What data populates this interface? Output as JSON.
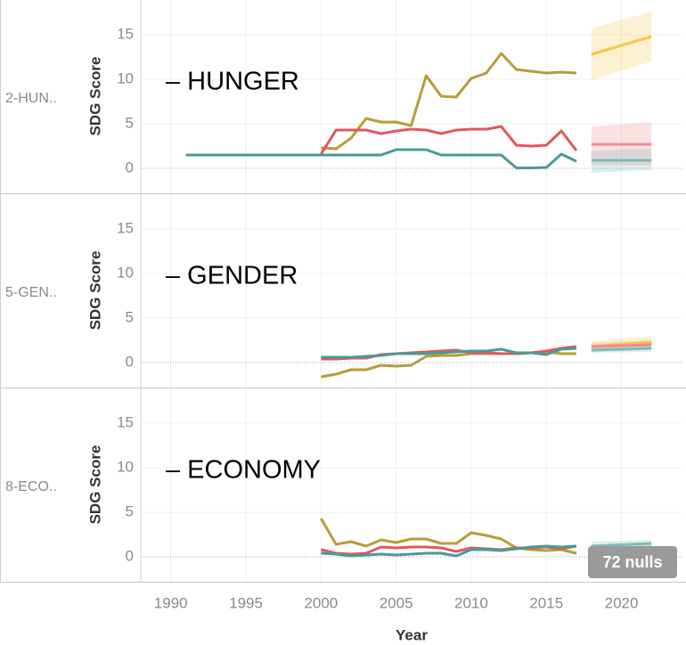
{
  "chart_data": [
    {
      "type": "line",
      "row_label": "2-HUN..",
      "annotation": "– HUNGER",
      "ylabel": "SDG Score",
      "xlim": [
        1988,
        2024
      ],
      "ylim": [
        -2.9,
        18.9
      ],
      "yticks": [
        0,
        5,
        10,
        15
      ],
      "series": [
        {
          "color": "#b79d35",
          "x": [
            2000,
            2001,
            2002,
            2003,
            2004,
            2005,
            2006,
            2007,
            2008,
            2009,
            2010,
            2011,
            2012,
            2013,
            2014,
            2015,
            2016,
            2017
          ],
          "values": [
            2.3,
            2.2,
            3.4,
            5.6,
            5.2,
            5.2,
            4.8,
            10.4,
            8.1,
            8.0,
            10.1,
            10.7,
            12.9,
            11.1,
            10.9,
            10.7,
            10.8,
            10.7
          ]
        },
        {
          "color": "#e0585e",
          "x": [
            2000,
            2001,
            2002,
            2003,
            2004,
            2005,
            2006,
            2007,
            2008,
            2009,
            2010,
            2011,
            2012,
            2013,
            2014,
            2015,
            2016,
            2017
          ],
          "values": [
            1.6,
            4.3,
            4.3,
            4.3,
            3.9,
            4.2,
            4.4,
            4.3,
            3.9,
            4.3,
            4.4,
            4.4,
            4.7,
            2.6,
            2.5,
            2.6,
            4.2,
            2.0
          ]
        },
        {
          "color": "#4a9a98",
          "x": [
            1991,
            1992,
            1993,
            1994,
            1995,
            1996,
            1997,
            1998,
            1999,
            2000,
            2001,
            2002,
            2003,
            2004,
            2005,
            2006,
            2007,
            2008,
            2009,
            2010,
            2011,
            2012,
            2013,
            2014,
            2015,
            2016,
            2017
          ],
          "values": [
            1.5,
            1.5,
            1.5,
            1.5,
            1.5,
            1.5,
            1.5,
            1.5,
            1.5,
            1.5,
            1.5,
            1.5,
            1.5,
            1.5,
            2.1,
            2.1,
            2.1,
            1.5,
            1.5,
            1.5,
            1.5,
            1.5,
            0.05,
            0.05,
            0.1,
            1.6,
            0.8
          ]
        }
      ],
      "forecasts": [
        {
          "color": "#f2c94c",
          "x": [
            2018,
            2022
          ],
          "values": [
            12.8,
            14.8
          ],
          "lower": [
            9.9,
            12.0
          ],
          "upper": [
            15.7,
            17.6
          ]
        },
        {
          "color": "#f4898c",
          "x": [
            2018,
            2022
          ],
          "values": [
            2.7,
            2.7
          ],
          "lower": [
            0.4,
            0.3
          ],
          "upper": [
            4.7,
            5.2
          ]
        },
        {
          "color": "#7cbcb9",
          "x": [
            2018,
            2022
          ],
          "values": [
            0.9,
            0.9
          ],
          "lower": [
            -0.5,
            -0.2
          ],
          "upper": [
            2.0,
            2.2
          ]
        }
      ]
    },
    {
      "type": "line",
      "row_label": "5-GEN..",
      "annotation": "– GENDER",
      "ylabel": "SDG Score",
      "xlim": [
        1988,
        2024
      ],
      "ylim": [
        -2.9,
        18.9
      ],
      "yticks": [
        0,
        5,
        10,
        15
      ],
      "series": [
        {
          "color": "#b79d35",
          "x": [
            2000,
            2001,
            2002,
            2003,
            2004,
            2005,
            2006,
            2007,
            2008,
            2009,
            2010,
            2011,
            2012,
            2013,
            2014,
            2015,
            2016,
            2017
          ],
          "values": [
            -1.6,
            -1.3,
            -0.8,
            -0.8,
            -0.3,
            -0.4,
            -0.3,
            0.7,
            0.8,
            0.8,
            1.0,
            1.0,
            1.0,
            1.0,
            1.1,
            1.2,
            1.0,
            1.0
          ]
        },
        {
          "color": "#e0585e",
          "x": [
            2000,
            2001,
            2002,
            2003,
            2004,
            2005,
            2006,
            2007,
            2008,
            2009,
            2010,
            2011,
            2012,
            2013,
            2014,
            2015,
            2016,
            2017
          ],
          "values": [
            0.4,
            0.4,
            0.5,
            0.5,
            0.9,
            1.0,
            1.1,
            1.2,
            1.3,
            1.4,
            1.1,
            1.1,
            1.0,
            1.0,
            1.1,
            1.3,
            1.6,
            1.8
          ]
        },
        {
          "color": "#4a9a98",
          "x": [
            2000,
            2001,
            2002,
            2003,
            2004,
            2005,
            2006,
            2007,
            2008,
            2009,
            2010,
            2011,
            2012,
            2013,
            2014,
            2015,
            2016,
            2017
          ],
          "values": [
            0.6,
            0.6,
            0.6,
            0.7,
            0.8,
            1.0,
            1.0,
            1.0,
            1.1,
            1.2,
            1.3,
            1.3,
            1.5,
            1.1,
            1.1,
            0.9,
            1.5,
            1.6
          ]
        }
      ],
      "forecasts": [
        {
          "color": "#f2c94c",
          "x": [
            2018,
            2022
          ],
          "values": [
            1.8,
            2.3
          ],
          "lower": [
            1.2,
            1.5
          ],
          "upper": [
            2.4,
            2.9
          ]
        },
        {
          "color": "#f4898c",
          "x": [
            2018,
            2022
          ],
          "values": [
            1.8,
            2.0
          ],
          "lower": [
            1.4,
            1.5
          ],
          "upper": [
            2.2,
            2.5
          ]
        },
        {
          "color": "#7cbcb9",
          "x": [
            2018,
            2022
          ],
          "values": [
            1.4,
            1.6
          ],
          "lower": [
            1.1,
            1.2
          ],
          "upper": [
            1.7,
            2.0
          ]
        }
      ]
    },
    {
      "type": "line",
      "row_label": "8-ECO..",
      "annotation": "– ECONOMY",
      "ylabel": "SDG Score",
      "xlim": [
        1988,
        2024
      ],
      "ylim": [
        -2.9,
        18.9
      ],
      "yticks": [
        0,
        5,
        10,
        15
      ],
      "xticks": [
        1990,
        1995,
        2000,
        2005,
        2010,
        2015,
        2020
      ],
      "xlabel": "Year",
      "note": "72 nulls",
      "series": [
        {
          "color": "#b79d35",
          "x": [
            2000,
            2001,
            2002,
            2003,
            2004,
            2005,
            2006,
            2007,
            2008,
            2009,
            2010,
            2011,
            2012,
            2013,
            2014,
            2015,
            2016,
            2017
          ],
          "values": [
            4.3,
            1.4,
            1.7,
            1.2,
            1.9,
            1.6,
            2.0,
            2.0,
            1.5,
            1.5,
            2.7,
            2.4,
            2.0,
            1.0,
            0.8,
            0.7,
            0.8,
            0.4
          ]
        },
        {
          "color": "#e0585e",
          "x": [
            2000,
            2001,
            2002,
            2003,
            2004,
            2005,
            2006,
            2007,
            2008,
            2009,
            2010,
            2011,
            2012,
            2013,
            2014,
            2015,
            2016,
            2017
          ],
          "values": [
            0.8,
            0.4,
            0.3,
            0.4,
            1.1,
            1.0,
            1.1,
            1.1,
            1.0,
            0.6,
            1.0,
            0.9,
            0.8,
            1.0,
            1.0,
            1.1,
            0.9,
            1.2
          ]
        },
        {
          "color": "#4a9a98",
          "x": [
            2000,
            2001,
            2002,
            2003,
            2004,
            2005,
            2006,
            2007,
            2008,
            2009,
            2010,
            2011,
            2012,
            2013,
            2014,
            2015,
            2016,
            2017
          ],
          "values": [
            0.4,
            0.3,
            0.1,
            0.2,
            0.3,
            0.2,
            0.3,
            0.4,
            0.4,
            0.1,
            0.8,
            0.8,
            0.7,
            0.9,
            1.1,
            1.2,
            1.1,
            1.2
          ]
        }
      ],
      "forecasts": [
        {
          "color": "#f2c94c",
          "x": [
            2018,
            2022
          ],
          "values": [
            0.7,
            0.6
          ],
          "lower": [
            0.3,
            0.2
          ],
          "upper": [
            1.1,
            1.0
          ]
        },
        {
          "color": "#f4898c",
          "x": [
            2018,
            2022
          ],
          "values": [
            0.8,
            0.9
          ],
          "lower": [
            0.4,
            0.5
          ],
          "upper": [
            1.2,
            1.3
          ]
        },
        {
          "color": "#7cbcb9",
          "x": [
            2018,
            2022
          ],
          "values": [
            1.2,
            1.5
          ],
          "lower": [
            0.8,
            1.1
          ],
          "upper": [
            1.7,
            1.9
          ]
        }
      ]
    }
  ]
}
